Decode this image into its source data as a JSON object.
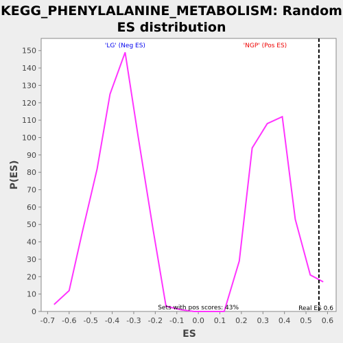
{
  "chart_data": {
    "type": "line",
    "title_line1": "KEGG_PHENYLALANINE_METABOLISM: Random",
    "title_line2": "ES distribution",
    "xlabel": "ES",
    "ylabel": "P(ES)",
    "xlim": [
      -0.73,
      0.64
    ],
    "ylim": [
      0,
      157
    ],
    "xticks": [
      -0.7,
      -0.6,
      -0.5,
      -0.4,
      -0.3,
      -0.2,
      -0.1,
      0.0,
      0.1,
      0.2,
      0.3,
      0.4,
      0.5,
      0.6
    ],
    "xtick_labels": [
      "-0.7",
      "-0.6",
      "-0.5",
      "-0.4",
      "-0.3",
      "-0.2",
      "-0.1",
      "0.0",
      "0.1",
      "0.2",
      "0.3",
      "0.4",
      "0.5",
      "0.6"
    ],
    "yticks": [
      0,
      10,
      20,
      30,
      40,
      50,
      60,
      70,
      80,
      90,
      100,
      110,
      120,
      130,
      140,
      150
    ],
    "ytick_labels": [
      "0",
      "10",
      "20",
      "30",
      "40",
      "50",
      "60",
      "70",
      "80",
      "90",
      "100",
      "110",
      "120",
      "130",
      "140",
      "150"
    ],
    "grid": false,
    "series": [
      {
        "color": "#ff33ff",
        "x": [
          -0.67,
          -0.6,
          -0.54,
          -0.47,
          -0.41,
          -0.34,
          -0.28,
          -0.21,
          -0.15,
          -0.08,
          -0.02,
          0.05,
          0.12,
          0.19,
          0.25,
          0.32,
          0.39,
          0.45,
          0.52,
          0.58
        ],
        "y": [
          4,
          12,
          45,
          82,
          125,
          149,
          101,
          47,
          3,
          1,
          0,
          0,
          0,
          29,
          94,
          108,
          112,
          53,
          21,
          17
        ]
      }
    ],
    "real_es": {
      "value": 0.56,
      "label": "Real ES 0.6",
      "color": "#000000"
    },
    "annotations": {
      "neg_label": "'LG' (Neg ES)",
      "neg_color": "#0000ee",
      "pos_label": "'NGP' (Pos ES)",
      "pos_color": "#ee0000",
      "pos_scores_text": "Sets with pos scores: 43%"
    },
    "colors": {
      "plot_background": "#ffffff",
      "page_background": "#eeeeee",
      "axis": "#888888"
    }
  }
}
